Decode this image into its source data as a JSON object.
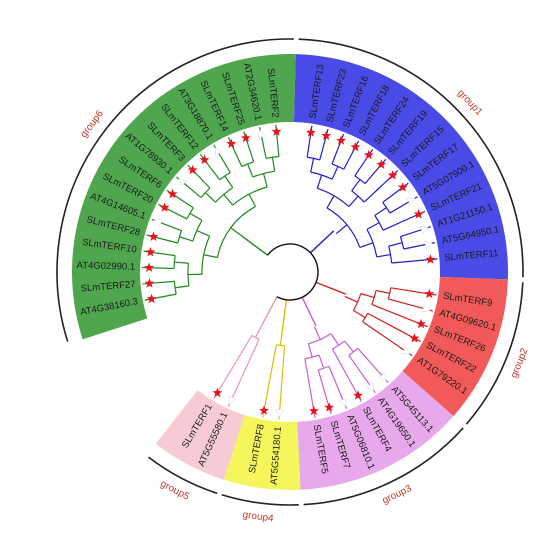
{
  "groups": [
    {
      "name": "group6",
      "color": "#4fa64f",
      "branch_color": "#1e8a1e",
      "leaves": [
        {
          "label": "AT4G38160.3",
          "marker": "star"
        },
        {
          "label": "SLmTERF27",
          "marker": "star"
        },
        {
          "label": "AT4G02990.1",
          "marker": "star"
        },
        {
          "label": "SLmTERF10",
          "marker": "star"
        },
        {
          "label": "SLmTERF28",
          "marker": "star"
        },
        {
          "label": "AT4G14605.1",
          "marker": "triangle"
        },
        {
          "label": "SLmTERF20",
          "marker": "star"
        },
        {
          "label": "SLmTERF6",
          "marker": "star"
        },
        {
          "label": "AT1G78930.1",
          "marker": "triangle"
        },
        {
          "label": "SLmTERF3",
          "marker": "star"
        },
        {
          "label": "SLmTERF12",
          "marker": "star"
        },
        {
          "label": "AT3G18870.1",
          "marker": "triangle"
        },
        {
          "label": "SLmTERF14",
          "marker": "star"
        },
        {
          "label": "SLmTERF25",
          "marker": "star"
        },
        {
          "label": "AT2G34620.1",
          "marker": "triangle"
        },
        {
          "label": "SLmTERF2",
          "marker": "star"
        }
      ]
    },
    {
      "name": "group1",
      "color": "#4a4ae6",
      "branch_color": "#1f1fcc",
      "leaves": [
        {
          "label": "SLmTERF13",
          "marker": "star"
        },
        {
          "label": "SLmTERF23",
          "marker": "star"
        },
        {
          "label": "SLmTERF16",
          "marker": "star"
        },
        {
          "label": "SLmTERF18",
          "marker": "star"
        },
        {
          "label": "SLmTERF24",
          "marker": "star"
        },
        {
          "label": "SLmTERF19",
          "marker": "star"
        },
        {
          "label": "SLmTERF15",
          "marker": "star"
        },
        {
          "label": "SLmTERF17",
          "marker": "star"
        },
        {
          "label": "AT5G07900.1",
          "marker": "triangle"
        },
        {
          "label": "SLmTERF21",
          "marker": "star"
        },
        {
          "label": "AT1G21150.1",
          "marker": "triangle"
        },
        {
          "label": "AT5G64950.1",
          "marker": "triangle"
        },
        {
          "label": "SLmTERF11",
          "marker": "star"
        }
      ]
    },
    {
      "name": "group2",
      "color": "#f25a5a",
      "branch_color": "#cc1f1f",
      "leaves": [
        {
          "label": "SLmTERF9",
          "marker": "star"
        },
        {
          "label": "AT4G09620.1",
          "marker": "triangle"
        },
        {
          "label": "SLmTERF26",
          "marker": "star"
        },
        {
          "label": "SLmTERF22",
          "marker": "star"
        },
        {
          "label": "AT1G79220.1",
          "marker": "triangle"
        }
      ]
    },
    {
      "name": "group3",
      "color": "#e7a8ec",
      "branch_color": "#c860c8",
      "leaves": [
        {
          "label": "AT5G45113.1",
          "marker": "triangle"
        },
        {
          "label": "AT4G19650.1",
          "marker": "triangle"
        },
        {
          "label": "SLmTERF4",
          "marker": "star"
        },
        {
          "label": "AT5G06810.1",
          "marker": "triangle"
        },
        {
          "label": "SLmTERF7",
          "marker": "star"
        },
        {
          "label": "SLmTERF5",
          "marker": "star"
        }
      ]
    },
    {
      "name": "group4",
      "color": "#f5f55c",
      "branch_color": "#d6c400",
      "leaves": [
        {
          "label": "AT5G54180.1",
          "marker": "triangle"
        },
        {
          "label": "SLmTERF8",
          "marker": "star"
        }
      ]
    },
    {
      "name": "group5",
      "color": "#f7cbd3",
      "branch_color": "#e89aa8",
      "leaves": [
        {
          "label": "AT5G55580.1",
          "marker": "triangle"
        },
        {
          "label": "SLmTERF1",
          "marker": "star"
        }
      ]
    }
  ],
  "marker_colors": {
    "star": "#e8141c",
    "triangle": "#ffffff"
  }
}
